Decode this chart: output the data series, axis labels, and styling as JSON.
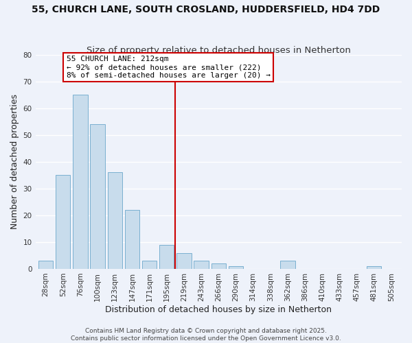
{
  "title_line1": "55, CHURCH LANE, SOUTH CROSLAND, HUDDERSFIELD, HD4 7DD",
  "title_line2": "Size of property relative to detached houses in Netherton",
  "bar_labels": [
    "28sqm",
    "52sqm",
    "76sqm",
    "100sqm",
    "123sqm",
    "147sqm",
    "171sqm",
    "195sqm",
    "219sqm",
    "243sqm",
    "266sqm",
    "290sqm",
    "314sqm",
    "338sqm",
    "362sqm",
    "386sqm",
    "410sqm",
    "433sqm",
    "457sqm",
    "481sqm",
    "505sqm"
  ],
  "bar_values": [
    3,
    35,
    65,
    54,
    36,
    22,
    3,
    9,
    6,
    3,
    2,
    1,
    0,
    0,
    3,
    0,
    0,
    0,
    0,
    1,
    0
  ],
  "bar_color": "#c8dcec",
  "bar_edge_color": "#7ab0d0",
  "xlabel": "Distribution of detached houses by size in Netherton",
  "ylabel": "Number of detached properties",
  "ylim": [
    0,
    80
  ],
  "yticks": [
    0,
    10,
    20,
    30,
    40,
    50,
    60,
    70,
    80
  ],
  "vline_index": 7.5,
  "vline_color": "#cc0000",
  "annotation_title": "55 CHURCH LANE: 212sqm",
  "annotation_line2": "← 92% of detached houses are smaller (222)",
  "annotation_line3": "8% of semi-detached houses are larger (20) →",
  "footer_line1": "Contains HM Land Registry data © Crown copyright and database right 2025.",
  "footer_line2": "Contains public sector information licensed under the Open Government Licence v3.0.",
  "background_color": "#eef2fa",
  "grid_color": "#ffffff",
  "title_fontsize": 10,
  "subtitle_fontsize": 9.5,
  "axis_label_fontsize": 9,
  "tick_fontsize": 7.5,
  "annotation_fontsize": 8,
  "footer_fontsize": 6.5
}
